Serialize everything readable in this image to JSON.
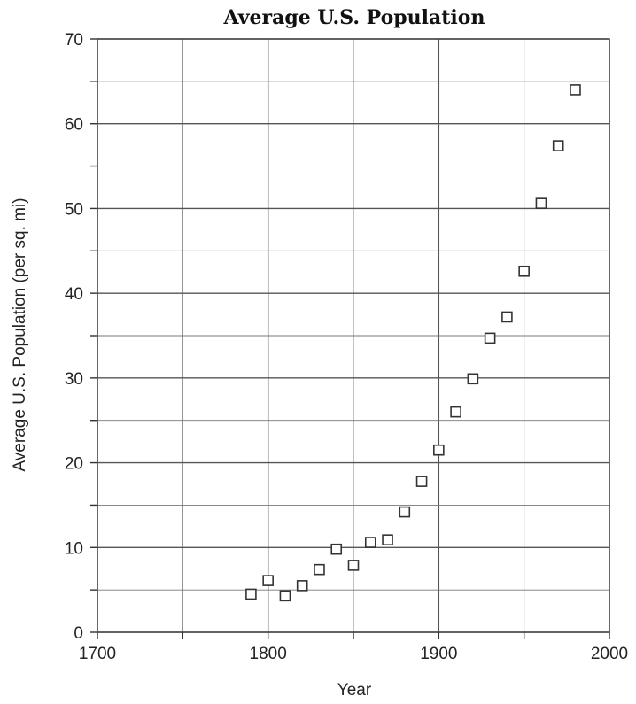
{
  "chart_data": {
    "type": "scatter",
    "title": "Average U.S. Population",
    "xlabel": "Year",
    "ylabel": "Average U.S. Population (per sq. mi)",
    "xlim": [
      1700,
      2000
    ],
    "ylim": [
      0,
      70
    ],
    "x_ticks": [
      1700,
      1800,
      1900,
      2000
    ],
    "y_ticks": [
      0,
      10,
      20,
      30,
      40,
      50,
      60,
      70
    ],
    "x_minor_step": 50,
    "y_minor_step": 5,
    "grid": true,
    "marker": "open-square",
    "points": [
      {
        "x": 1790,
        "y": 4.5
      },
      {
        "x": 1800,
        "y": 6.1
      },
      {
        "x": 1810,
        "y": 4.3
      },
      {
        "x": 1820,
        "y": 5.5
      },
      {
        "x": 1830,
        "y": 7.4
      },
      {
        "x": 1840,
        "y": 9.8
      },
      {
        "x": 1850,
        "y": 7.9
      },
      {
        "x": 1860,
        "y": 10.6
      },
      {
        "x": 1870,
        "y": 10.9
      },
      {
        "x": 1880,
        "y": 14.2
      },
      {
        "x": 1890,
        "y": 17.8
      },
      {
        "x": 1900,
        "y": 21.5
      },
      {
        "x": 1910,
        "y": 26.0
      },
      {
        "x": 1920,
        "y": 29.9
      },
      {
        "x": 1930,
        "y": 34.7
      },
      {
        "x": 1940,
        "y": 37.2
      },
      {
        "x": 1950,
        "y": 42.6
      },
      {
        "x": 1960,
        "y": 50.6
      },
      {
        "x": 1970,
        "y": 57.4
      },
      {
        "x": 1980,
        "y": 64.0
      }
    ]
  }
}
